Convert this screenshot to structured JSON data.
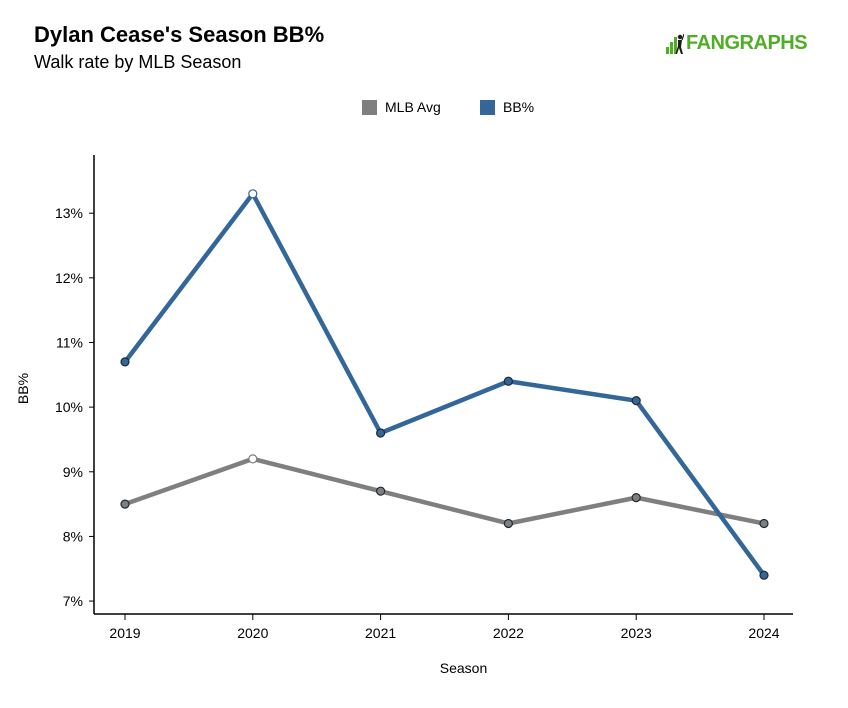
{
  "header": {
    "title": "Dylan Cease's Season BB%",
    "subtitle": "Walk rate by MLB Season"
  },
  "logo": {
    "text": "FANGRAPHS",
    "icon": "fangraphs-batter-icon",
    "color": "#50ae26"
  },
  "legend": [
    {
      "label": "MLB Avg",
      "color": "#7f7f7f"
    },
    {
      "label": "BB%",
      "color": "#336699"
    }
  ],
  "chart_data": {
    "type": "line",
    "title": "Dylan Cease's Season BB%",
    "subtitle": "Walk rate by MLB Season",
    "xlabel": "Season",
    "ylabel": "BB%",
    "x": [
      2019,
      2020,
      2021,
      2022,
      2023,
      2024
    ],
    "ylim": [
      6.8,
      13.9
    ],
    "yticks": [
      7,
      8,
      9,
      10,
      11,
      12,
      13
    ],
    "ytick_labels": [
      "7%",
      "8%",
      "9%",
      "10%",
      "11%",
      "12%",
      "13%"
    ],
    "xtick_labels": [
      "2019",
      "2020",
      "2021",
      "2022",
      "2023",
      "2024"
    ],
    "grid": false,
    "legend_position": "top-center",
    "series": [
      {
        "name": "MLB Avg",
        "color": "#7f7f7f",
        "values": [
          8.5,
          9.2,
          8.7,
          8.2,
          8.6,
          8.2
        ]
      },
      {
        "name": "BB%",
        "color": "#336699",
        "values": [
          10.7,
          13.3,
          9.6,
          10.4,
          10.1,
          7.4
        ]
      }
    ],
    "hollow_markers_at": [
      2020
    ]
  }
}
